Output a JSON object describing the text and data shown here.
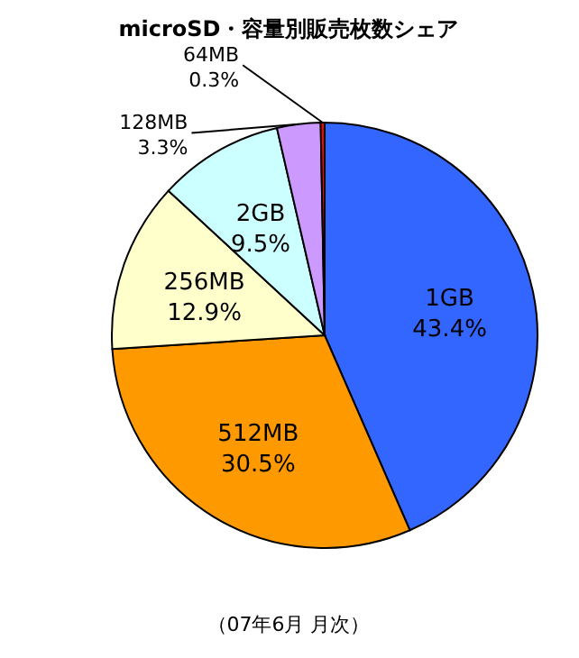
{
  "chart_data": {
    "type": "pie",
    "title": "microSD・容量別販売枚数シェア",
    "categories": [
      "1GB",
      "512MB",
      "256MB",
      "2GB",
      "128MB",
      "64MB"
    ],
    "values": [
      43.4,
      30.5,
      12.9,
      9.5,
      3.3,
      0.3
    ],
    "colors": [
      "#3366ff",
      "#ff9900",
      "#ffffcc",
      "#ccffff",
      "#cc99ff",
      "#ff0000"
    ],
    "value_labels": [
      "43.4%",
      "30.5%",
      "12.9%",
      "9.5%",
      "3.3%",
      "0.3%"
    ],
    "annotations": [
      "（07年6月 月次）"
    ]
  }
}
